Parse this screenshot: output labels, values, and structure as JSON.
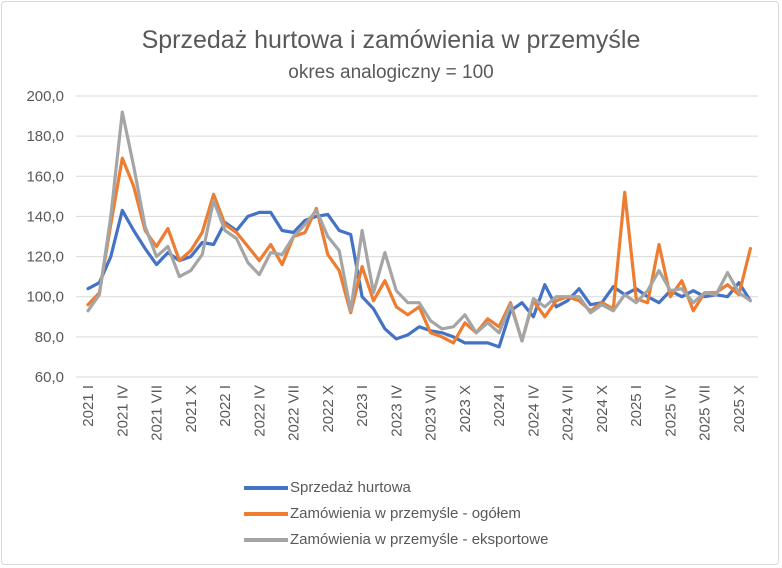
{
  "chart_data": {
    "type": "line",
    "title": "Sprzedaż hurtowa i zamówienia w przemyśle",
    "subtitle": "okres analogiczny = 100",
    "ylim": [
      60,
      200
    ],
    "yticks": [
      "200,0",
      "180,0",
      "160,0",
      "140,0",
      "120,0",
      "100,0",
      "80,0",
      "60,0"
    ],
    "ytick_values": [
      200,
      180,
      160,
      140,
      120,
      100,
      80,
      60
    ],
    "xtick_labels": [
      "2021 I",
      "2021 IV",
      "2021 VII",
      "2021 X",
      "2022 I",
      "2022 IV",
      "2022 VII",
      "2022 X",
      "2023 I",
      "2023 IV",
      "2023 VII",
      "2023 X",
      "2024 I",
      "2024 IV",
      "2024 VII",
      "2024 X",
      "2025 I",
      "2025 IV",
      "2025 VII",
      "2025 X"
    ],
    "n_points": 59,
    "grid": true,
    "legend_position": "bottom",
    "series": [
      {
        "name": "Sprzedaż hurtowa",
        "color": "#4472c4",
        "values": [
          104,
          107,
          120,
          143,
          133,
          124,
          116,
          122,
          118,
          120,
          127,
          126,
          137,
          133,
          140,
          142,
          142,
          133,
          132,
          138,
          140,
          141,
          133,
          131,
          100,
          94,
          84,
          79,
          81,
          85,
          83,
          82,
          80,
          77,
          77,
          77,
          75,
          93,
          97,
          90,
          106,
          95,
          98,
          104,
          96,
          97,
          105,
          101,
          104,
          100,
          97,
          103,
          100,
          103,
          100,
          101,
          100,
          107,
          98
        ]
      },
      {
        "name": "Zamówienia w przemyśle - ogółem",
        "color": "#ed7d31",
        "values": [
          96,
          102,
          136,
          169,
          155,
          133,
          125,
          134,
          118,
          123,
          132,
          151,
          136,
          132,
          125,
          118,
          126,
          116,
          130,
          132,
          144,
          121,
          113,
          92,
          115,
          98,
          108,
          95,
          91,
          95,
          82,
          80,
          77,
          87,
          82,
          89,
          85,
          97,
          78,
          98,
          90,
          98,
          100,
          98,
          93,
          97,
          94,
          152,
          99,
          97,
          126,
          100,
          108,
          93,
          102,
          102,
          106,
          101,
          124
        ]
      },
      {
        "name": "Zamówienia w przemyśle - eksportowe",
        "color": "#a5a5a5",
        "values": [
          93,
          101,
          140,
          192,
          165,
          135,
          120,
          125,
          110,
          113,
          121,
          148,
          133,
          129,
          117,
          111,
          122,
          121,
          130,
          136,
          143,
          130,
          123,
          93,
          133,
          102,
          122,
          103,
          97,
          97,
          88,
          84,
          85,
          91,
          82,
          87,
          82,
          96,
          78,
          99,
          95,
          100,
          100,
          100,
          92,
          96,
          93,
          101,
          97,
          103,
          113,
          103,
          104,
          97,
          102,
          101,
          112,
          102,
          98
        ]
      }
    ]
  }
}
